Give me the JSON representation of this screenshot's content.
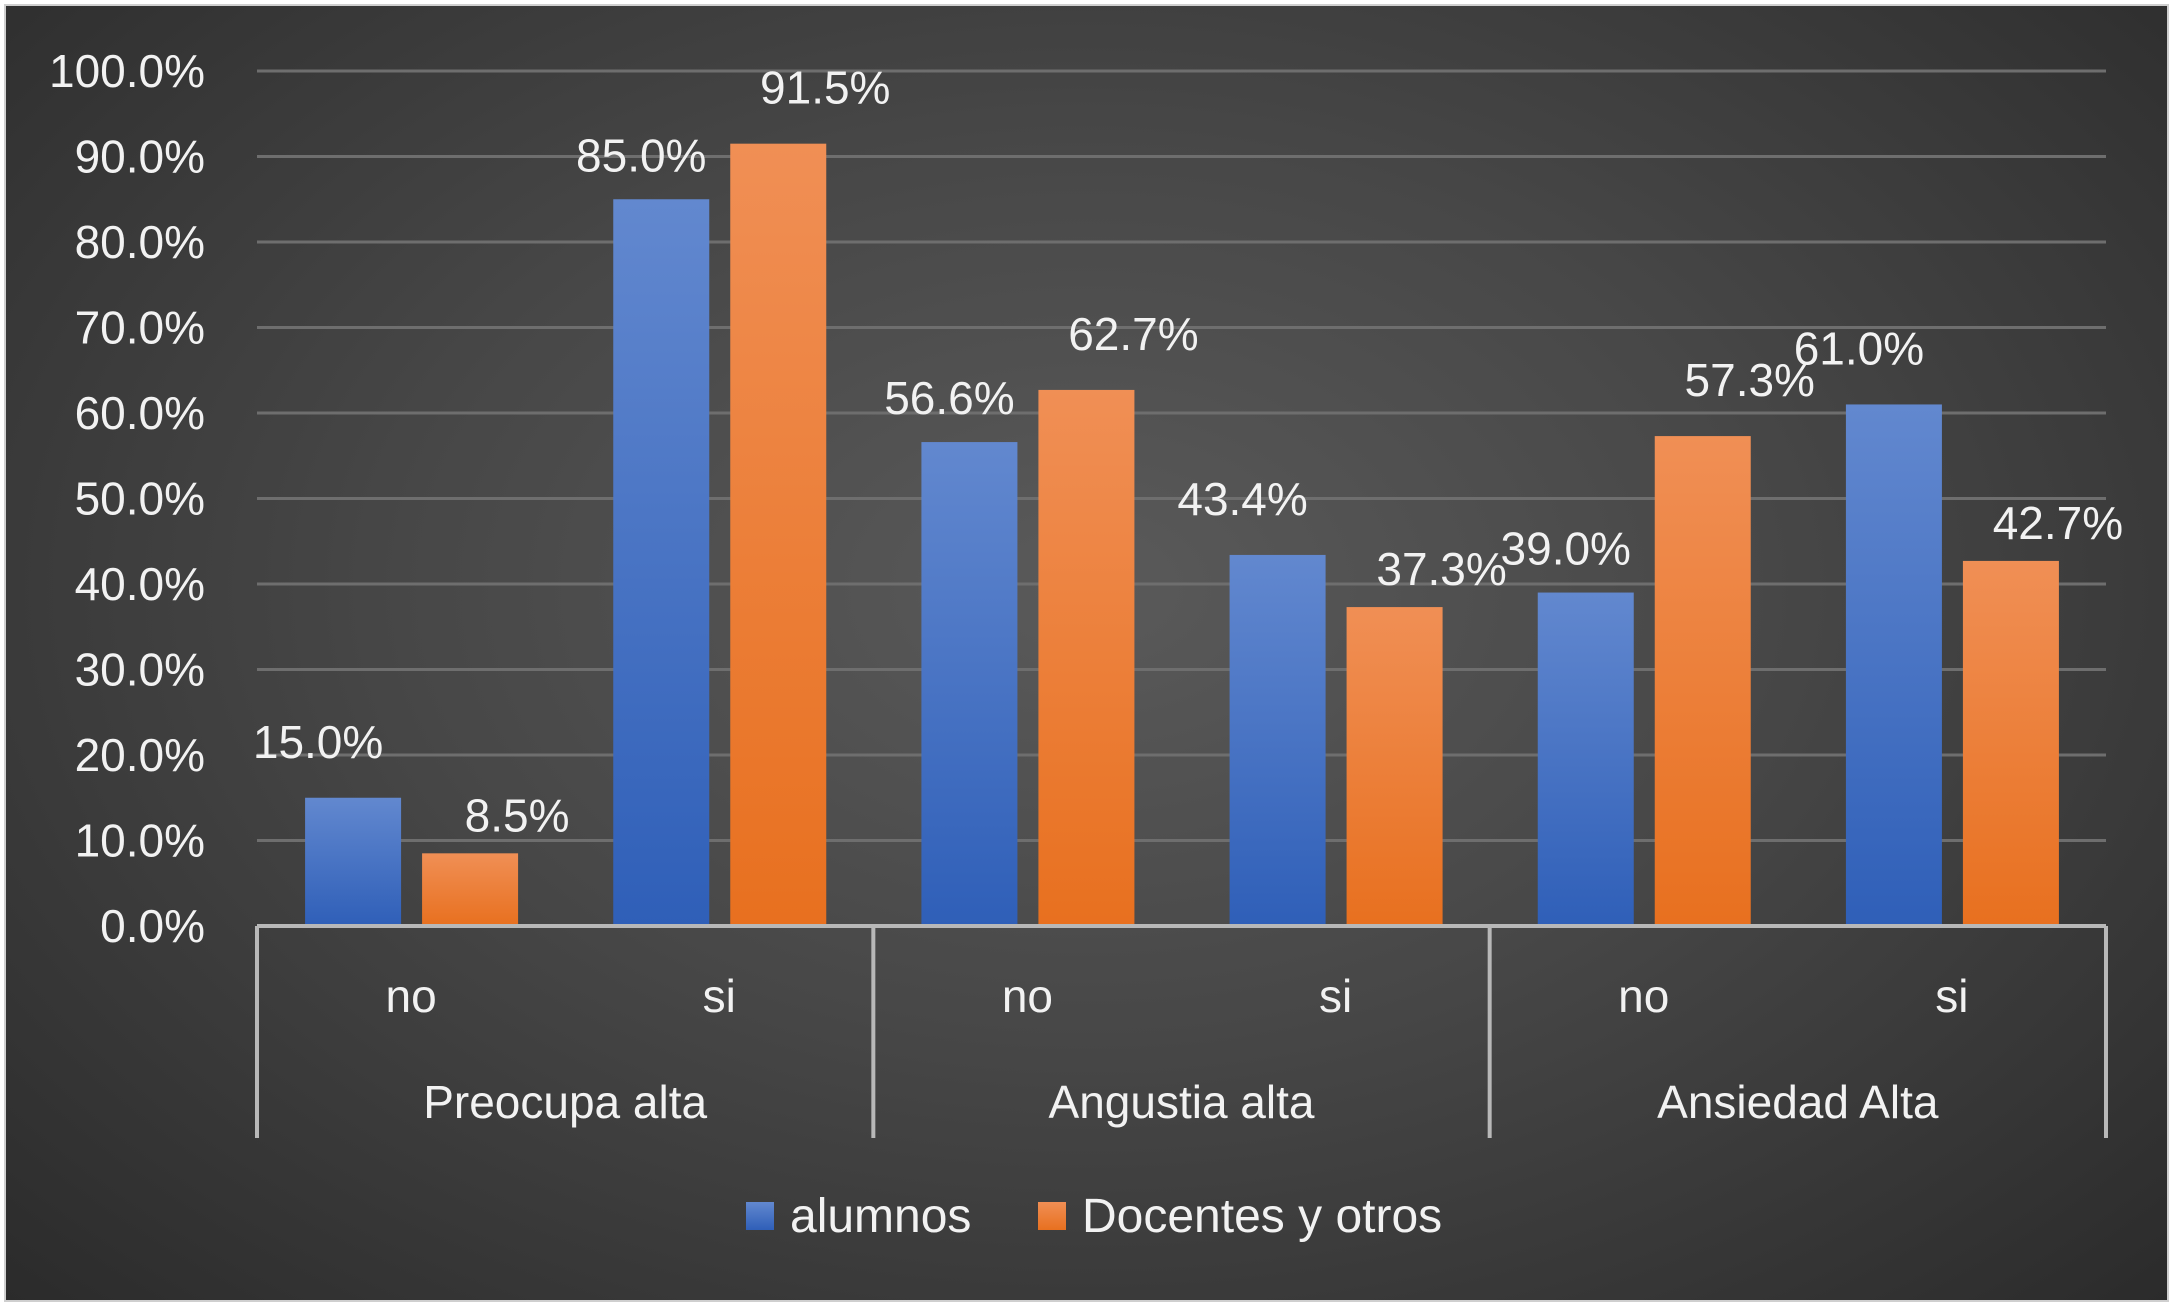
{
  "chart_data": {
    "type": "bar",
    "groups": [
      {
        "label": "Preocupa alta",
        "categories": [
          "no",
          "si"
        ]
      },
      {
        "label": "Angustia alta",
        "categories": [
          "no",
          "si"
        ]
      },
      {
        "label": "Ansiedad Alta",
        "categories": [
          "no",
          "si"
        ]
      }
    ],
    "categories": [
      "no",
      "si",
      "no",
      "si",
      "no",
      "si"
    ],
    "series": [
      {
        "name": "alumnos",
        "color": "#4472c4",
        "values": [
          15.0,
          85.0,
          56.6,
          43.4,
          39.0,
          61.0
        ],
        "labels": [
          "15.0%",
          "85.0%",
          "56.6%",
          "43.4%",
          "39.0%",
          "61.0%"
        ]
      },
      {
        "name": "Docentes y otros",
        "color": "#ed7d31",
        "values": [
          8.5,
          91.5,
          62.7,
          37.3,
          57.3,
          42.7
        ],
        "labels": [
          "8.5%",
          "91.5%",
          "62.7%",
          "37.3%",
          "57.3%",
          "42.7%"
        ]
      }
    ],
    "yticks": [
      "0.0%",
      "10.0%",
      "20.0%",
      "30.0%",
      "40.0%",
      "50.0%",
      "60.0%",
      "70.0%",
      "80.0%",
      "90.0%",
      "100.0%"
    ],
    "ylim": [
      0,
      100
    ],
    "grid": true,
    "legend": "bottom",
    "xlabel": "",
    "ylabel": ""
  }
}
